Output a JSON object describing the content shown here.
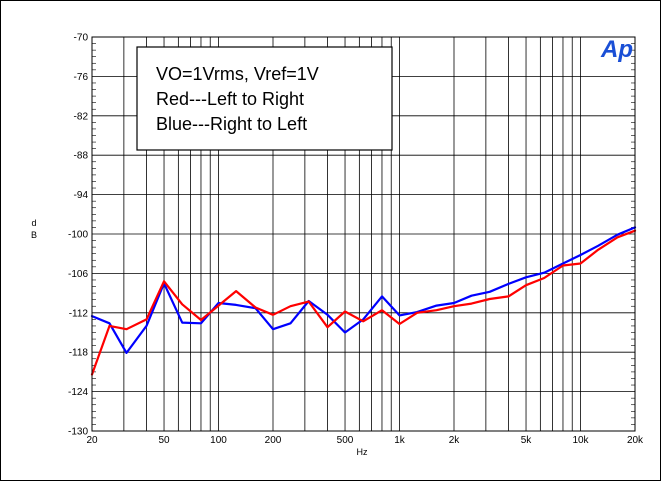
{
  "chart_data": {
    "type": "line",
    "logo_text": "Ap",
    "title": "",
    "xlabel": "Hz",
    "ylabel": "d\nB",
    "x_scale": "log",
    "xlim": [
      20,
      20000
    ],
    "ylim": [
      -130,
      -70
    ],
    "x_ticks": [
      {
        "value": 20,
        "label": "20"
      },
      {
        "value": 50,
        "label": "50"
      },
      {
        "value": 100,
        "label": "100"
      },
      {
        "value": 200,
        "label": "200"
      },
      {
        "value": 500,
        "label": "500"
      },
      {
        "value": 1000,
        "label": "1k"
      },
      {
        "value": 2000,
        "label": "2k"
      },
      {
        "value": 5000,
        "label": "5k"
      },
      {
        "value": 10000,
        "label": "10k"
      },
      {
        "value": 20000,
        "label": "20k"
      }
    ],
    "y_ticks": [
      -70,
      -76,
      -82,
      -88,
      -94,
      -100,
      -106,
      -112,
      -118,
      -124,
      -130
    ],
    "grid": true,
    "annotation_lines": [
      "VO=1Vrms, Vref=1V",
      "Red---Left to Right",
      "Blue---Right to Left"
    ],
    "series": [
      {
        "color": "#0000ff",
        "x": [
          20,
          25,
          31,
          40,
          50,
          63,
          80,
          100,
          125,
          160,
          200,
          250,
          315,
          400,
          500,
          630,
          800,
          1000,
          1250,
          1600,
          2000,
          2500,
          3150,
          4000,
          5000,
          6300,
          8000,
          10000,
          12500,
          16000,
          20000
        ],
        "y": [
          -112.5,
          -113.6,
          -118.1,
          -114.0,
          -107.5,
          -113.5,
          -113.6,
          -110.5,
          -110.8,
          -111.3,
          -114.5,
          -113.6,
          -110.2,
          -112.3,
          -115.0,
          -113.0,
          -109.5,
          -112.4,
          -111.9,
          -110.9,
          -110.5,
          -109.4,
          -108.8,
          -107.6,
          -106.6,
          -105.9,
          -104.5,
          -103.2,
          -101.8,
          -100.1,
          -99.0
        ]
      },
      {
        "color": "#ff0000",
        "x": [
          20,
          25,
          31,
          40,
          50,
          63,
          80,
          100,
          125,
          160,
          200,
          250,
          315,
          400,
          500,
          630,
          800,
          1000,
          1250,
          1600,
          2000,
          2500,
          3150,
          4000,
          5000,
          6300,
          8000,
          10000,
          12500,
          16000,
          20000
        ],
        "y": [
          -121.4,
          -114.0,
          -114.5,
          -113.0,
          -107.2,
          -110.7,
          -113.1,
          -110.9,
          -108.7,
          -111.2,
          -112.3,
          -111.0,
          -110.3,
          -114.2,
          -111.8,
          -113.3,
          -111.6,
          -113.7,
          -112.0,
          -111.6,
          -111.0,
          -110.6,
          -109.9,
          -109.5,
          -107.8,
          -106.7,
          -104.8,
          -104.5,
          -102.4,
          -100.5,
          -99.5
        ]
      }
    ]
  }
}
